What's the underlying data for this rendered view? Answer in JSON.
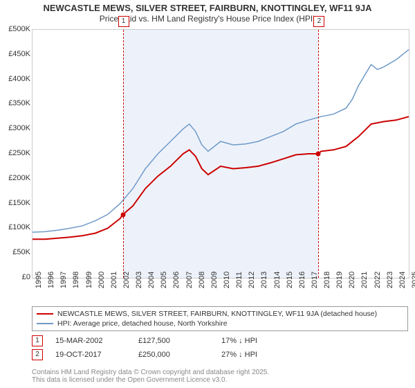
{
  "title_line1": "NEWCASTLE MEWS, SILVER STREET, FAIRBURN, KNOTTINGLEY, WF11 9JA",
  "title_line2": "Price paid vs. HM Land Registry's House Price Index (HPI)",
  "chart": {
    "type": "line",
    "background_color": "#ffffff",
    "plot_border_color": "#cccccc",
    "shade_color": "rgba(174,198,230,0.22)",
    "x": {
      "min": 1995,
      "max": 2025,
      "ticks": [
        1995,
        1996,
        1997,
        1998,
        1999,
        2000,
        2001,
        2002,
        2003,
        2004,
        2005,
        2006,
        2007,
        2008,
        2009,
        2010,
        2011,
        2012,
        2013,
        2014,
        2015,
        2016,
        2017,
        2018,
        2019,
        2020,
        2021,
        2022,
        2023,
        2024,
        2025
      ]
    },
    "y": {
      "min": 0,
      "max": 500000,
      "ticks": [
        0,
        50000,
        100000,
        150000,
        200000,
        250000,
        300000,
        350000,
        400000,
        450000,
        500000
      ],
      "tick_labels": [
        "£0",
        "£50K",
        "£100K",
        "£150K",
        "£200K",
        "£250K",
        "£300K",
        "£350K",
        "£400K",
        "£450K",
        "£500K"
      ]
    },
    "shade_start_year": 2002.2,
    "shade_end_year": 2017.8,
    "series": [
      {
        "key": "property",
        "color": "#cc0000",
        "width": 2,
        "points": [
          [
            1995,
            78000
          ],
          [
            1996,
            78000
          ],
          [
            1997,
            80000
          ],
          [
            1998,
            82000
          ],
          [
            1999,
            85000
          ],
          [
            2000,
            90000
          ],
          [
            2001,
            100000
          ],
          [
            2002,
            120000
          ],
          [
            2002.2,
            127500
          ],
          [
            2003,
            145000
          ],
          [
            2004,
            180000
          ],
          [
            2005,
            205000
          ],
          [
            2006,
            225000
          ],
          [
            2007,
            250000
          ],
          [
            2007.5,
            258000
          ],
          [
            2008,
            245000
          ],
          [
            2008.5,
            220000
          ],
          [
            2009,
            208000
          ],
          [
            2010,
            225000
          ],
          [
            2011,
            220000
          ],
          [
            2012,
            222000
          ],
          [
            2013,
            225000
          ],
          [
            2014,
            232000
          ],
          [
            2015,
            240000
          ],
          [
            2016,
            248000
          ],
          [
            2017,
            250000
          ],
          [
            2017.8,
            250000
          ],
          [
            2018,
            255000
          ],
          [
            2019,
            258000
          ],
          [
            2020,
            265000
          ],
          [
            2021,
            285000
          ],
          [
            2022,
            310000
          ],
          [
            2023,
            315000
          ],
          [
            2024,
            318000
          ],
          [
            2025,
            325000
          ]
        ]
      },
      {
        "key": "hpi",
        "color": "#6f99c8",
        "width": 1.5,
        "points": [
          [
            1995,
            92000
          ],
          [
            1996,
            93000
          ],
          [
            1997,
            96000
          ],
          [
            1998,
            100000
          ],
          [
            1999,
            105000
          ],
          [
            2000,
            115000
          ],
          [
            2001,
            128000
          ],
          [
            2002,
            150000
          ],
          [
            2003,
            180000
          ],
          [
            2004,
            220000
          ],
          [
            2005,
            250000
          ],
          [
            2006,
            275000
          ],
          [
            2007,
            300000
          ],
          [
            2007.5,
            310000
          ],
          [
            2008,
            295000
          ],
          [
            2008.5,
            268000
          ],
          [
            2009,
            255000
          ],
          [
            2010,
            275000
          ],
          [
            2011,
            268000
          ],
          [
            2012,
            270000
          ],
          [
            2013,
            275000
          ],
          [
            2014,
            285000
          ],
          [
            2015,
            295000
          ],
          [
            2016,
            310000
          ],
          [
            2017,
            318000
          ],
          [
            2018,
            325000
          ],
          [
            2019,
            330000
          ],
          [
            2020,
            342000
          ],
          [
            2020.5,
            360000
          ],
          [
            2021,
            388000
          ],
          [
            2022,
            430000
          ],
          [
            2022.5,
            420000
          ],
          [
            2023,
            425000
          ],
          [
            2024,
            440000
          ],
          [
            2025,
            460000
          ]
        ]
      }
    ],
    "markers": [
      {
        "n": "1",
        "year": 2002.2,
        "value": 127500,
        "color": "#cc0000"
      },
      {
        "n": "2",
        "year": 2017.8,
        "value": 250000,
        "color": "#cc0000"
      }
    ]
  },
  "legend": {
    "property": "NEWCASTLE MEWS, SILVER STREET, FAIRBURN, KNOTTINGLEY, WF11 9JA (detached house)",
    "hpi": "HPI: Average price, detached house, North Yorkshire"
  },
  "sales": [
    {
      "n": "1",
      "date": "15-MAR-2002",
      "price": "£127,500",
      "pct": "17%",
      "dir": "down",
      "suffix": "HPI"
    },
    {
      "n": "2",
      "date": "19-OCT-2017",
      "price": "£250,000",
      "pct": "27%",
      "dir": "down",
      "suffix": "HPI"
    }
  ],
  "attribution": "Contains HM Land Registry data © Crown copyright and database right 2025.\nThis data is licensed under the Open Government Licence v3.0.",
  "colors": {
    "property_line": "#cc0000",
    "hpi_line": "#6f99c8",
    "marker_border": "#cc0000",
    "text": "#333333",
    "attrib": "#888888"
  },
  "fonts": {
    "title_size": 13,
    "tick_size": 11,
    "legend_size": 10.5
  }
}
